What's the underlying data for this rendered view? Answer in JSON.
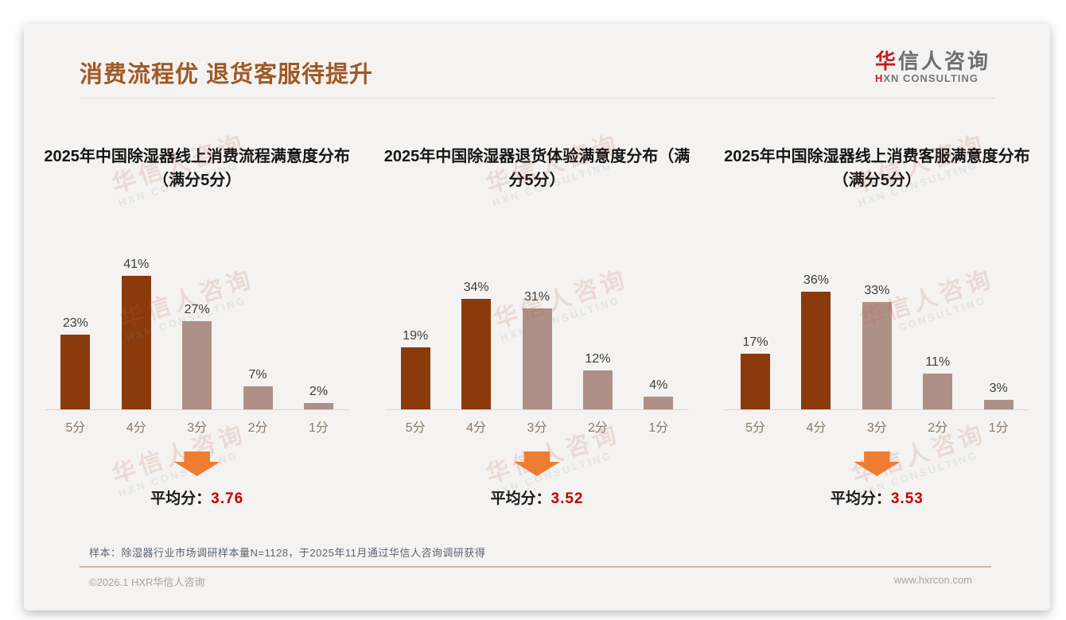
{
  "page": {
    "title": "消费流程优 退货客服待提升",
    "logo": {
      "accent_char": "华",
      "rest": "信人咨询",
      "subtitle_accent": "H",
      "subtitle_rest": "XN CONSULTING"
    },
    "footer_note": "样本：除湿器行业市场调研样本量N=1128，于2025年11月通过华信人咨询调研获得",
    "footer_left": "©2026.1 HXR华信人咨询",
    "footer_right": "www.hxrcon.com"
  },
  "watermark": {
    "line1": "华信人咨询",
    "line2": "HXN CONSULTING"
  },
  "colors": {
    "title_brown": "#9e5a28",
    "bar_dark": "#8b3a0c",
    "bar_light": "#ae9086",
    "arrow_orange": "#ee7d31",
    "average_red": "#c00000",
    "logo_red": "#c3201d",
    "card_bg": "#f4f3f1"
  },
  "chart_data": [
    {
      "type": "bar",
      "title": "2025年中国除湿器线上消费流程满意度分布（满分5分）",
      "categories": [
        "5分",
        "4分",
        "3分",
        "2分",
        "1分"
      ],
      "values": [
        23,
        41,
        27,
        7,
        2
      ],
      "value_labels": [
        "23%",
        "41%",
        "27%",
        "7%",
        "2%"
      ],
      "bar_palette": [
        "bar_dark",
        "bar_dark",
        "bar_light",
        "bar_light",
        "bar_light"
      ],
      "average_label": "平均分：",
      "average_value": "3.76",
      "xlabel": "",
      "ylabel": "",
      "ylim": [
        0,
        45
      ],
      "grid": false,
      "legend": false,
      "unit": "percent"
    },
    {
      "type": "bar",
      "title": "2025年中国除湿器退货体验满意度分布（满分5分）",
      "categories": [
        "5分",
        "4分",
        "3分",
        "2分",
        "1分"
      ],
      "values": [
        19,
        34,
        31,
        12,
        4
      ],
      "value_labels": [
        "19%",
        "34%",
        "31%",
        "12%",
        "4%"
      ],
      "bar_palette": [
        "bar_dark",
        "bar_dark",
        "bar_light",
        "bar_light",
        "bar_light"
      ],
      "average_label": "平均分：",
      "average_value": "3.52",
      "xlabel": "",
      "ylabel": "",
      "ylim": [
        0,
        45
      ],
      "grid": false,
      "legend": false,
      "unit": "percent"
    },
    {
      "type": "bar",
      "title": "2025年中国除湿器线上消费客服满意度分布（满分5分）",
      "categories": [
        "5分",
        "4分",
        "3分",
        "2分",
        "1分"
      ],
      "values": [
        17,
        36,
        33,
        11,
        3
      ],
      "value_labels": [
        "17%",
        "36%",
        "33%",
        "11%",
        "3%"
      ],
      "bar_palette": [
        "bar_dark",
        "bar_dark",
        "bar_light",
        "bar_light",
        "bar_light"
      ],
      "average_label": "平均分：",
      "average_value": "3.53",
      "xlabel": "",
      "ylabel": "",
      "ylim": [
        0,
        45
      ],
      "grid": false,
      "legend": false,
      "unit": "percent"
    }
  ]
}
